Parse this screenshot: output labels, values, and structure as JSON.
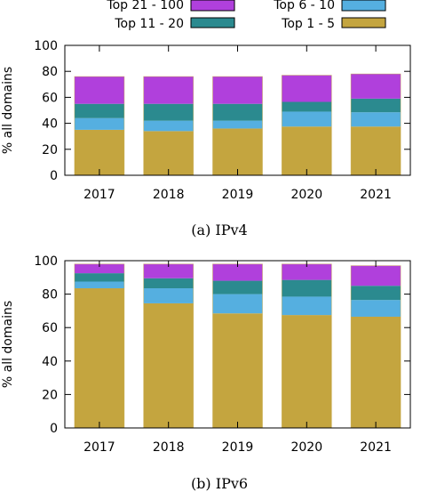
{
  "legend": [
    {
      "label": "Top 21 - 100"
    },
    {
      "label": "Top 11 - 20"
    },
    {
      "label": "Top 6 - 10"
    },
    {
      "label": "Top 1 - 5"
    }
  ],
  "colors": {
    "top_1_5": "#c4a53f",
    "top_6_10": "#55afe0",
    "top_11_20": "#2b8a8f",
    "top_21_100": "#b040dc",
    "bar_overlay": "#c4a53f"
  },
  "chart_data": [
    {
      "type": "bar",
      "stacked": true,
      "caption": "(a) IPv4",
      "ylabel": "% all domains",
      "xlabel": "",
      "ylim": [
        0,
        100
      ],
      "yticks": [
        0,
        20,
        40,
        60,
        80,
        100
      ],
      "categories": [
        "2017",
        "2018",
        "2019",
        "2020",
        "2021"
      ],
      "series": [
        {
          "name": "Top 1 - 5",
          "color_key": "top_1_5",
          "values": [
            35,
            34,
            36,
            37.5,
            37.5
          ]
        },
        {
          "name": "Top 6 - 10",
          "color_key": "top_6_10",
          "values": [
            9,
            8,
            6,
            11.5,
            11
          ]
        },
        {
          "name": "Top 11 - 20",
          "color_key": "top_11_20",
          "values": [
            11,
            13,
            13,
            7.5,
            10.5
          ]
        },
        {
          "name": "Top 21 - 100",
          "color_key": "top_21_100",
          "values": [
            21,
            21,
            21,
            20.5,
            19
          ]
        }
      ]
    },
    {
      "type": "bar",
      "stacked": true,
      "caption": "(b) IPv6",
      "ylabel": "% all domains",
      "xlabel": "",
      "ylim": [
        0,
        100
      ],
      "yticks": [
        0,
        20,
        40,
        60,
        80,
        100
      ],
      "categories": [
        "2017",
        "2018",
        "2019",
        "2020",
        "2021"
      ],
      "series": [
        {
          "name": "Top 1 - 5",
          "color_key": "top_1_5",
          "values": [
            83.5,
            74.5,
            68.5,
            67.5,
            66.5
          ]
        },
        {
          "name": "Top 6 - 10",
          "color_key": "top_6_10",
          "values": [
            4,
            9,
            11.5,
            11,
            10
          ]
        },
        {
          "name": "Top 11 - 20",
          "color_key": "top_11_20",
          "values": [
            5,
            6,
            8,
            10,
            8.5
          ]
        },
        {
          "name": "Top 21 - 100",
          "color_key": "top_21_100",
          "values": [
            5.5,
            8.5,
            10,
            9.5,
            12
          ]
        }
      ]
    }
  ]
}
